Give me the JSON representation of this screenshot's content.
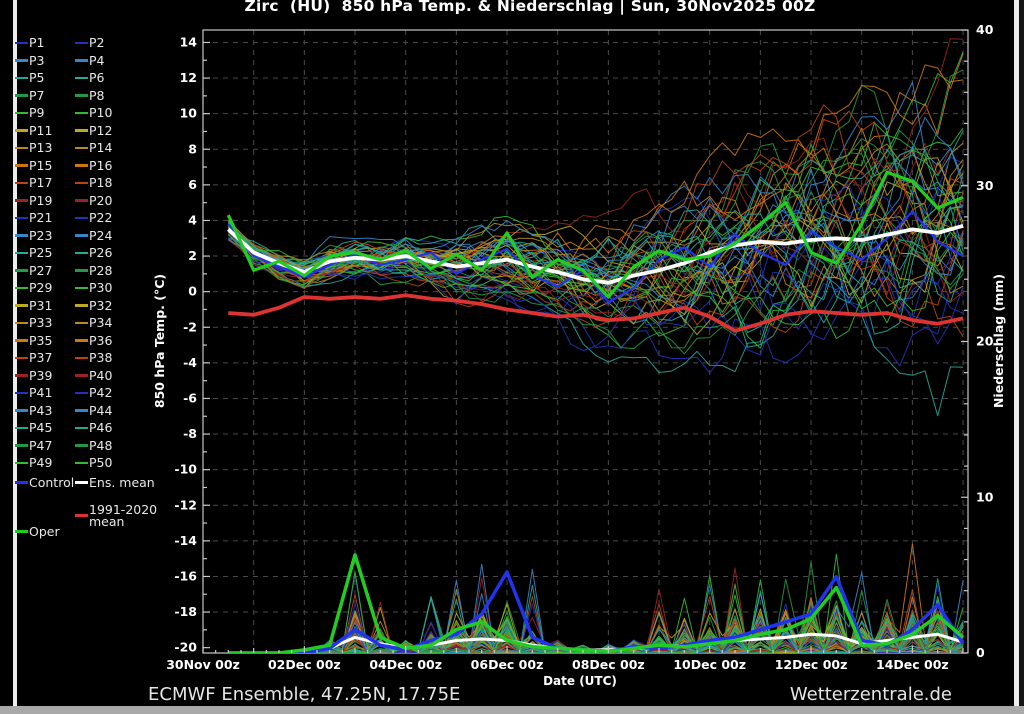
{
  "title": "Zirc  (HU)  850 hPa Temp. & Niederschlag | Sun, 30Nov2025 00Z",
  "footer": {
    "model_info": "ECMWF Ensemble, 47.25N, 17.75E",
    "site_credit": "Wetterzentrale.de"
  },
  "legend": {
    "member_labels": [
      "P1",
      "P2",
      "P3",
      "P4",
      "P5",
      "P6",
      "P7",
      "P8",
      "P9",
      "P10",
      "P11",
      "P12",
      "P13",
      "P14",
      "P15",
      "P16",
      "P17",
      "P18",
      "P19",
      "P20",
      "P21",
      "P22",
      "P23",
      "P24",
      "P25",
      "P26",
      "P27",
      "P28",
      "P29",
      "P30",
      "P31",
      "P32",
      "P33",
      "P34",
      "P35",
      "P36",
      "P37",
      "P38",
      "P39",
      "P40",
      "P41",
      "P42",
      "P43",
      "P44",
      "P45",
      "P46",
      "P47",
      "P48",
      "P49",
      "P50"
    ],
    "special": [
      {
        "label": "Control",
        "color": "#2233ee"
      },
      {
        "label": "Ens. mean",
        "color": "#ffffff"
      },
      {
        "label": "1991-2020",
        "label2": "mean",
        "color": "#dd3333"
      },
      {
        "label": "Oper",
        "color": "#22cc22"
      }
    ]
  },
  "chart_data": {
    "type": "line",
    "title": "Zirc (HU) 850 hPa Temp. & Niederschlag | Sun, 30Nov2025 00Z",
    "x_label": "Date (UTC)",
    "x_tick_labels": [
      "30Nov 00z",
      "02Dec 00z",
      "04Dec 00z",
      "06Dec 00z",
      "08Dec 00z",
      "10Dec 00z",
      "12Dec 00z",
      "14Dec 00z"
    ],
    "x_tick_days": [
      0,
      2,
      4,
      6,
      8,
      10,
      12,
      14
    ],
    "x_hours": [
      12,
      24,
      36,
      48,
      60,
      72,
      84,
      96,
      108,
      120,
      132,
      144,
      156,
      168,
      180,
      192,
      204,
      216,
      228,
      240,
      252,
      264,
      276,
      288,
      300,
      312,
      324,
      336,
      348,
      360
    ],
    "temp_axis": {
      "label": "850 hPa Temp. (°C)",
      "range": [
        -20.3,
        14.7
      ],
      "ticks": [
        14,
        12,
        10,
        8,
        6,
        4,
        2,
        0,
        -2,
        -4,
        -6,
        -8,
        -10,
        -12,
        -14,
        -16,
        -18,
        -20
      ],
      "grid": true
    },
    "precip_axis": {
      "label": "Niederschlag (mm)",
      "range": [
        0,
        40
      ],
      "ticks": [
        40,
        30,
        20,
        10,
        0
      ]
    },
    "series": {
      "ens_mean_temp": [
        3.5,
        2.2,
        1.6,
        1.1,
        1.7,
        1.9,
        1.8,
        2.0,
        1.7,
        1.4,
        1.6,
        1.8,
        1.4,
        1.1,
        0.7,
        0.5,
        0.9,
        1.2,
        1.6,
        2.2,
        2.6,
        2.8,
        2.7,
        2.9,
        3.0,
        2.9,
        3.2,
        3.5,
        3.3,
        3.7
      ],
      "climate_mean_temp_1991_2020": [
        -1.2,
        -1.3,
        -0.9,
        -0.3,
        -0.4,
        -0.3,
        -0.4,
        -0.2,
        -0.4,
        -0.5,
        -0.7,
        -1.0,
        -1.2,
        -1.4,
        -1.3,
        -1.6,
        -1.5,
        -1.2,
        -0.9,
        -1.4,
        -2.2,
        -1.8,
        -1.3,
        -1.1,
        -1.2,
        -1.3,
        -1.2,
        -1.6,
        -1.8,
        -1.5
      ],
      "oper_temp": [
        4.3,
        1.2,
        1.7,
        0.9,
        2.0,
        2.2,
        1.8,
        2.3,
        1.3,
        2.1,
        1.2,
        3.3,
        0.8,
        1.8,
        1.2,
        -0.3,
        1.4,
        2.3,
        1.8,
        2.0,
        2.7,
        3.8,
        5.0,
        2.2,
        1.6,
        3.8,
        6.7,
        6.2,
        4.7,
        5.3
      ],
      "control_temp": [
        3.8,
        2.0,
        1.4,
        0.8,
        1.5,
        2.1,
        1.5,
        1.8,
        2.2,
        1.0,
        1.8,
        2.4,
        0.9,
        0.3,
        1.2,
        -0.6,
        0.2,
        1.8,
        2.5,
        1.4,
        3.2,
        2.2,
        1.5,
        3.4,
        2.5,
        1.8,
        3.0,
        4.5,
        2.8,
        2.0
      ],
      "ens_mean_precip": [
        0,
        0,
        0,
        0.1,
        0.3,
        1.0,
        0.6,
        0.3,
        0.5,
        0.8,
        0.9,
        0.8,
        0.5,
        0.3,
        0.2,
        0.2,
        0.3,
        0.4,
        0.5,
        0.6,
        0.8,
        0.9,
        1.0,
        1.2,
        1.1,
        0.6,
        0.8,
        1.0,
        1.2,
        0.7
      ],
      "oper_precip": [
        0,
        0,
        0,
        0.2,
        0.5,
        6.3,
        1.0,
        0.3,
        0.5,
        1.5,
        2.0,
        0.8,
        0.4,
        0.3,
        0.2,
        0.1,
        0.3,
        0.5,
        0.4,
        0.6,
        0.8,
        1.2,
        1.5,
        2.2,
        4.2,
        0.5,
        0.6,
        1.2,
        2.4,
        1.0
      ],
      "control_precip": [
        0,
        0,
        0,
        0,
        0.3,
        1.5,
        0.5,
        0.2,
        0.8,
        1.2,
        2.5,
        5.2,
        1.0,
        0.3,
        0.2,
        0.1,
        0.4,
        0.3,
        0.5,
        0.8,
        1.0,
        1.5,
        2.0,
        2.5,
        4.9,
        0.8,
        0.5,
        1.5,
        3.1,
        0.6
      ],
      "member_temp_spread": [
        0.4,
        0.5,
        0.6,
        0.7,
        0.8,
        0.9,
        1.0,
        1.1,
        1.2,
        1.4,
        1.6,
        1.8,
        2.0,
        2.3,
        2.6,
        2.9,
        3.2,
        3.5,
        3.8,
        4.2,
        4.5,
        4.8,
        5.1,
        5.4,
        5.6,
        5.8,
        6.0,
        6.2,
        6.4,
        6.5
      ]
    },
    "members": {
      "count": 50,
      "seed": 20251130
    },
    "colors": {
      "member_palette": [
        "#2233bb",
        "#3388cc",
        "#22aa99",
        "#229944",
        "#33bb33",
        "#bbaa22",
        "#bb8822",
        "#cc7711",
        "#bb4411",
        "#992222"
      ],
      "control": "#2233ee",
      "ens_mean": "#ffffff",
      "oper": "#22cc22",
      "climate_mean": "#dd3333",
      "grid": "#4a4a4a",
      "axis": "#c8c8c8",
      "text": "#ffffff"
    },
    "legend_position": "left"
  }
}
